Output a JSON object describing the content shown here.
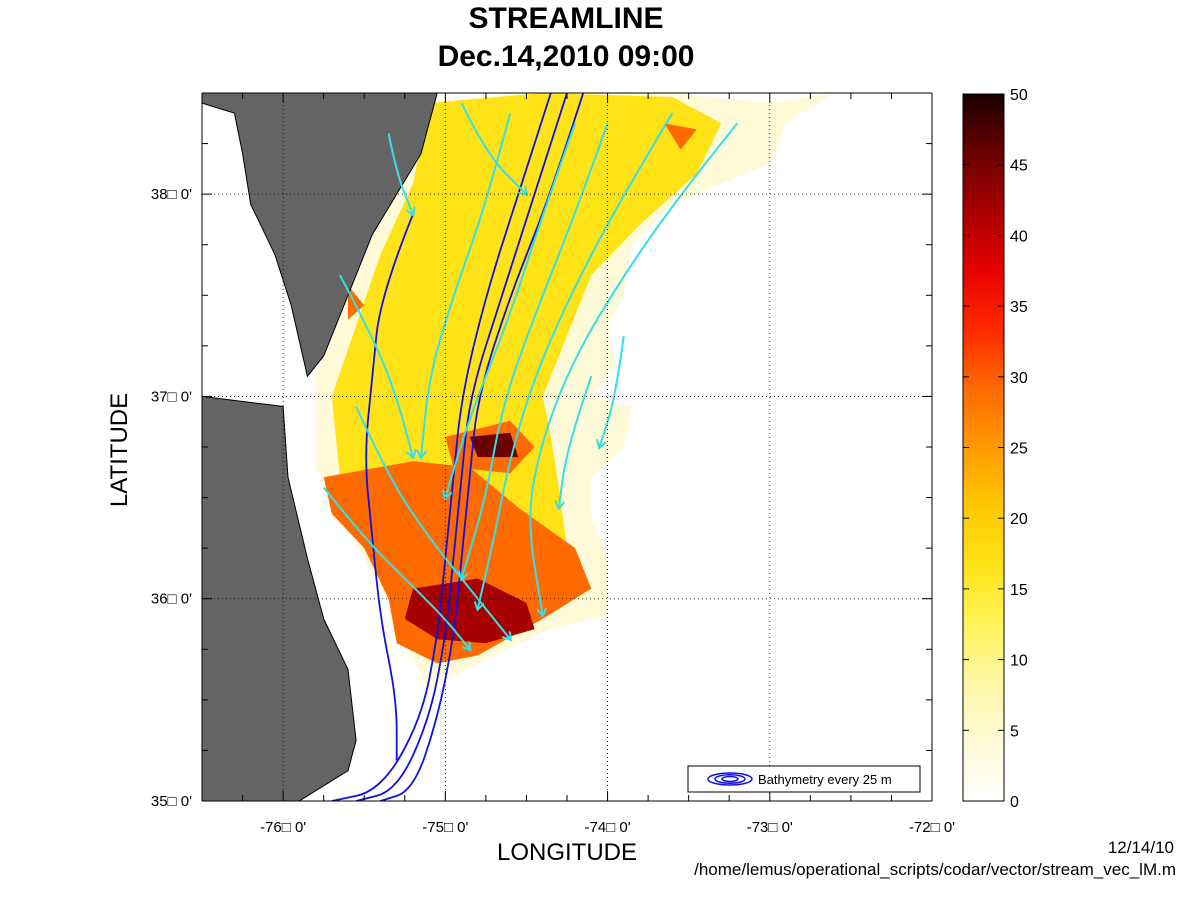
{
  "title": "STREAMLINE",
  "subtitle": "Dec.14,2010 09:00",
  "footer": {
    "date": "12/14/10",
    "path": "/home/lemus/operational_scripts/codar/vector/stream_vec_lM.m"
  },
  "legend": {
    "label": "Bathymetry every 25 m"
  },
  "chart_data": {
    "type": "heatmap",
    "title": "STREAMLINE",
    "subtitle": "Dec.14,2010 09:00",
    "xlabel": "LONGITUDE",
    "ylabel": "LATITUDE",
    "xlim": [
      -76.5,
      -72
    ],
    "ylim": [
      35,
      38.5
    ],
    "xticks": [
      -76,
      -75,
      -74,
      -73,
      -72
    ],
    "yticks": [
      35,
      36,
      37,
      38
    ],
    "xtick_labels": [
      "-76□ 0'",
      "-75□ 0'",
      "-74□ 0'",
      "-73□ 0'",
      "-72□ 0'"
    ],
    "ytick_labels": [
      "35□ 0'",
      "36□ 0'",
      "37□ 0'",
      "38□ 0'"
    ],
    "grid": true,
    "colorbar": {
      "range": [
        0,
        50
      ],
      "ticks": [
        0,
        5,
        10,
        15,
        20,
        25,
        30,
        35,
        40,
        45,
        50
      ],
      "colors": [
        "#ffffff",
        "#fffbd8",
        "#fff7a6",
        "#fff45a",
        "#ffe317",
        "#ffc700",
        "#ff9a00",
        "#ff6a00",
        "#ff2a00",
        "#e60000",
        "#a80000",
        "#6a0000",
        "#1a0000"
      ]
    },
    "zones": [
      {
        "level": 5,
        "lonlat": [
          [
            -75.2,
            38.45
          ],
          [
            -74.5,
            38.5
          ],
          [
            -73.6,
            38.5
          ],
          [
            -73.0,
            38.45
          ],
          [
            -72.6,
            38.5
          ],
          [
            -72.9,
            38.35
          ],
          [
            -73.0,
            38.15
          ],
          [
            -73.3,
            38.05
          ],
          [
            -73.6,
            37.95
          ],
          [
            -73.85,
            37.75
          ],
          [
            -73.9,
            37.5
          ],
          [
            -74.0,
            37.35
          ],
          [
            -73.95,
            37.15
          ],
          [
            -74.1,
            37.0
          ],
          [
            -73.85,
            36.95
          ],
          [
            -73.9,
            36.75
          ],
          [
            -74.1,
            36.6
          ],
          [
            -74.1,
            36.4
          ],
          [
            -74.0,
            36.2
          ],
          [
            -74.0,
            35.92
          ],
          [
            -74.35,
            35.85
          ],
          [
            -74.75,
            35.7
          ],
          [
            -75.1,
            35.55
          ],
          [
            -75.2,
            35.7
          ],
          [
            -75.3,
            35.9
          ],
          [
            -75.6,
            36.35
          ],
          [
            -75.8,
            36.65
          ],
          [
            -75.8,
            37.1
          ],
          [
            -75.6,
            37.5
          ],
          [
            -75.45,
            37.8
          ],
          [
            -75.3,
            38.1
          ]
        ]
      },
      {
        "level": 15,
        "lonlat": [
          [
            -75.1,
            38.45
          ],
          [
            -74.4,
            38.5
          ],
          [
            -73.6,
            38.48
          ],
          [
            -73.3,
            38.35
          ],
          [
            -73.45,
            38.1
          ],
          [
            -73.8,
            37.85
          ],
          [
            -74.1,
            37.6
          ],
          [
            -74.25,
            37.3
          ],
          [
            -74.4,
            37.0
          ],
          [
            -74.35,
            36.8
          ],
          [
            -74.3,
            36.55
          ],
          [
            -74.25,
            36.25
          ],
          [
            -74.6,
            36.1
          ],
          [
            -74.95,
            35.9
          ],
          [
            -75.15,
            35.75
          ],
          [
            -75.3,
            35.95
          ],
          [
            -75.5,
            36.3
          ],
          [
            -75.65,
            36.6
          ],
          [
            -75.7,
            37.0
          ],
          [
            -75.55,
            37.35
          ],
          [
            -75.4,
            37.7
          ],
          [
            -75.2,
            38.05
          ]
        ]
      },
      {
        "level": 28,
        "lonlat": [
          [
            -75.75,
            36.6
          ],
          [
            -75.2,
            36.68
          ],
          [
            -74.85,
            36.65
          ],
          [
            -74.55,
            36.45
          ],
          [
            -74.2,
            36.25
          ],
          [
            -74.1,
            36.05
          ],
          [
            -74.4,
            35.9
          ],
          [
            -74.8,
            35.72
          ],
          [
            -75.05,
            35.68
          ],
          [
            -75.3,
            35.78
          ],
          [
            -75.35,
            36.0
          ],
          [
            -75.5,
            36.25
          ],
          [
            -75.7,
            36.42
          ]
        ]
      },
      {
        "level": 40,
        "lonlat": [
          [
            -75.2,
            36.05
          ],
          [
            -74.8,
            36.1
          ],
          [
            -74.5,
            35.98
          ],
          [
            -74.45,
            35.85
          ],
          [
            -74.75,
            35.78
          ],
          [
            -75.05,
            35.8
          ],
          [
            -75.25,
            35.9
          ]
        ]
      },
      {
        "level": 28,
        "lonlat": [
          [
            -75.0,
            36.8
          ],
          [
            -74.6,
            36.88
          ],
          [
            -74.45,
            36.75
          ],
          [
            -74.6,
            36.62
          ],
          [
            -74.95,
            36.65
          ]
        ]
      },
      {
        "level": 45,
        "lonlat": [
          [
            -74.85,
            36.8
          ],
          [
            -74.6,
            36.82
          ],
          [
            -74.55,
            36.7
          ],
          [
            -74.8,
            36.7
          ]
        ]
      },
      {
        "level": 28,
        "lonlat": [
          [
            -75.6,
            37.55
          ],
          [
            -75.5,
            37.45
          ],
          [
            -75.6,
            37.38
          ]
        ]
      },
      {
        "level": 28,
        "lonlat": [
          [
            -73.65,
            38.35
          ],
          [
            -73.45,
            38.32
          ],
          [
            -73.55,
            38.22
          ]
        ]
      }
    ],
    "streamlines": [
      [
        [
          -74.2,
          38.35
        ],
        [
          -74.4,
          37.9
        ],
        [
          -74.6,
          37.4
        ],
        [
          -74.85,
          36.9
        ],
        [
          -75.0,
          36.5
        ]
      ],
      [
        [
          -74.0,
          38.35
        ],
        [
          -74.2,
          37.9
        ],
        [
          -74.45,
          37.4
        ],
        [
          -74.65,
          36.95
        ],
        [
          -74.75,
          36.5
        ],
        [
          -74.9,
          36.1
        ]
      ],
      [
        [
          -73.6,
          38.4
        ],
        [
          -73.9,
          38.0
        ],
        [
          -74.2,
          37.55
        ],
        [
          -74.45,
          37.1
        ],
        [
          -74.6,
          36.7
        ],
        [
          -74.7,
          36.3
        ],
        [
          -74.8,
          35.95
        ]
      ],
      [
        [
          -73.2,
          38.35
        ],
        [
          -73.55,
          38.0
        ],
        [
          -73.9,
          37.6
        ],
        [
          -74.2,
          37.2
        ],
        [
          -74.4,
          36.8
        ],
        [
          -74.5,
          36.4
        ],
        [
          -74.4,
          35.92
        ]
      ],
      [
        [
          -74.6,
          38.4
        ],
        [
          -74.75,
          37.95
        ],
        [
          -74.95,
          37.5
        ],
        [
          -75.1,
          37.1
        ],
        [
          -75.15,
          36.7
        ]
      ],
      [
        [
          -75.65,
          37.6
        ],
        [
          -75.45,
          37.3
        ],
        [
          -75.3,
          37.0
        ],
        [
          -75.2,
          36.7
        ]
      ],
      [
        [
          -75.55,
          36.95
        ],
        [
          -75.35,
          36.6
        ],
        [
          -75.1,
          36.3
        ],
        [
          -74.85,
          36.05
        ],
        [
          -74.6,
          35.8
        ]
      ],
      [
        [
          -75.75,
          36.55
        ],
        [
          -75.5,
          36.3
        ],
        [
          -75.25,
          36.1
        ],
        [
          -75.0,
          35.9
        ],
        [
          -74.85,
          35.75
        ]
      ],
      [
        [
          -74.1,
          37.1
        ],
        [
          -74.25,
          36.75
        ],
        [
          -74.3,
          36.45
        ]
      ],
      [
        [
          -73.9,
          37.3
        ],
        [
          -73.95,
          37.0
        ],
        [
          -74.05,
          36.75
        ]
      ],
      [
        [
          -75.35,
          38.3
        ],
        [
          -75.3,
          38.1
        ],
        [
          -75.2,
          37.9
        ]
      ],
      [
        [
          -74.9,
          38.45
        ],
        [
          -74.75,
          38.2
        ],
        [
          -74.5,
          38.0
        ]
      ]
    ],
    "isobaths": [
      [
        [
          -74.35,
          38.5
        ],
        [
          -74.55,
          38.0
        ],
        [
          -74.75,
          37.5
        ],
        [
          -74.9,
          37.0
        ],
        [
          -74.95,
          36.6
        ],
        [
          -75.0,
          36.2
        ],
        [
          -75.05,
          35.8
        ],
        [
          -75.15,
          35.4
        ],
        [
          -75.4,
          35.05
        ],
        [
          -75.7,
          35.0
        ]
      ],
      [
        [
          -74.25,
          38.5
        ],
        [
          -74.45,
          38.0
        ],
        [
          -74.65,
          37.5
        ],
        [
          -74.85,
          37.0
        ],
        [
          -74.9,
          36.6
        ],
        [
          -74.95,
          36.2
        ],
        [
          -75.0,
          35.8
        ],
        [
          -75.1,
          35.4
        ],
        [
          -75.3,
          35.05
        ],
        [
          -75.55,
          35.0
        ]
      ],
      [
        [
          -74.15,
          38.5
        ],
        [
          -74.35,
          38.0
        ],
        [
          -74.6,
          37.5
        ],
        [
          -74.8,
          37.0
        ],
        [
          -74.85,
          36.6
        ],
        [
          -74.9,
          36.2
        ],
        [
          -74.95,
          35.8
        ],
        [
          -75.05,
          35.4
        ],
        [
          -75.2,
          35.05
        ],
        [
          -75.4,
          35.0
        ]
      ],
      [
        [
          -75.2,
          37.9
        ],
        [
          -75.4,
          37.5
        ],
        [
          -75.45,
          37.1
        ],
        [
          -75.5,
          36.7
        ],
        [
          -75.45,
          36.3
        ],
        [
          -75.4,
          35.9
        ],
        [
          -75.3,
          35.5
        ],
        [
          -75.3,
          35.2
        ]
      ]
    ],
    "land": [
      [
        [
          -76.5,
          38.5
        ],
        [
          -75.05,
          38.5
        ],
        [
          -75.15,
          38.2
        ],
        [
          -75.3,
          38.0
        ],
        [
          -75.45,
          37.8
        ],
        [
          -75.6,
          37.5
        ],
        [
          -75.75,
          37.2
        ],
        [
          -75.85,
          37.1
        ],
        [
          -75.95,
          37.45
        ],
        [
          -76.05,
          37.7
        ],
        [
          -76.2,
          37.95
        ],
        [
          -76.25,
          38.2
        ],
        [
          -76.3,
          38.4
        ],
        [
          -76.5,
          38.45
        ]
      ],
      [
        [
          -76.5,
          37.0
        ],
        [
          -76.0,
          36.95
        ],
        [
          -75.97,
          36.6
        ],
        [
          -75.85,
          36.2
        ],
        [
          -75.75,
          35.9
        ],
        [
          -75.6,
          35.65
        ],
        [
          -75.55,
          35.3
        ],
        [
          -75.6,
          35.15
        ],
        [
          -75.9,
          35.0
        ],
        [
          -76.5,
          35.0
        ]
      ]
    ]
  }
}
